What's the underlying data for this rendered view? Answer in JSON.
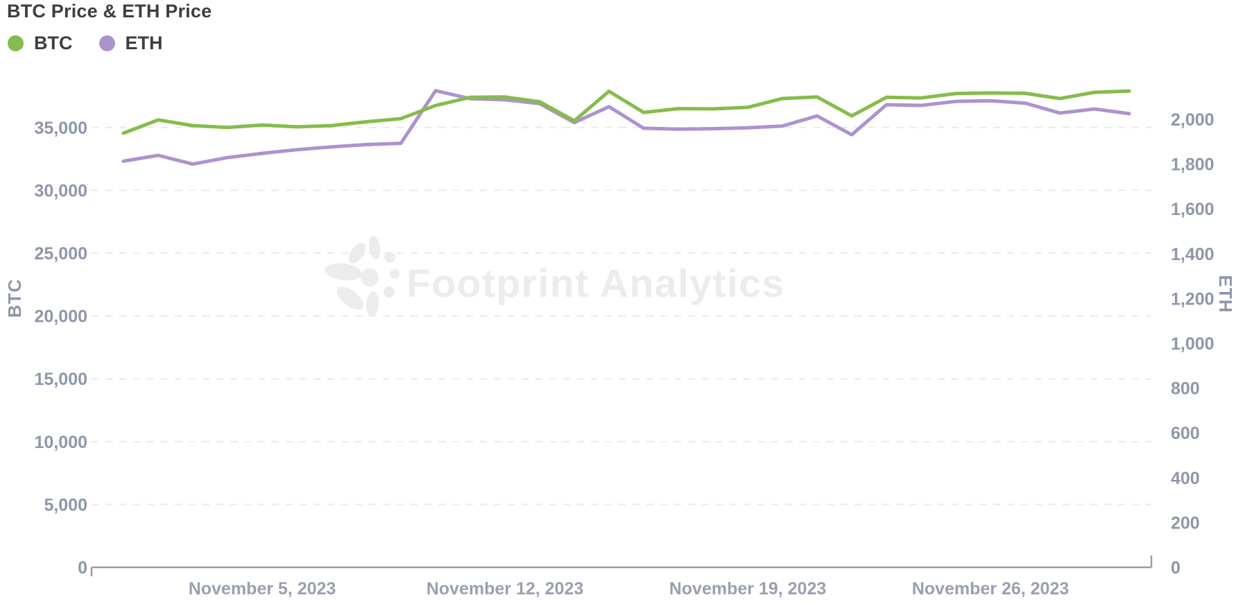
{
  "title": "BTC Price & ETH Price",
  "legend": {
    "items": [
      {
        "label": "BTC",
        "color": "#85BC4C"
      },
      {
        "label": "ETH",
        "color": "#AE92CF"
      }
    ]
  },
  "watermark": {
    "text": "Footprint Analytics"
  },
  "colors": {
    "btc_line": "#85BC4C",
    "eth_line": "#AE92CF",
    "grid": "#EAEAEE",
    "axis_line": "#9B9B9B",
    "axis_text": "#8F96AA",
    "date_text": "#9AA0B2",
    "title_text": "#3E3E3E",
    "watermark": "#ECECEE",
    "background": "#FFFFFF"
  },
  "chart_data": {
    "type": "line",
    "title": "BTC Price & ETH Price",
    "legend_position": "top-left",
    "grid": {
      "horizontal_dashed_lines": true,
      "at_left_axis_ticks": true
    },
    "dates": [
      "2023-11-01",
      "2023-11-02",
      "2023-11-03",
      "2023-11-04",
      "2023-11-05",
      "2023-11-06",
      "2023-11-07",
      "2023-11-08",
      "2023-11-09",
      "2023-11-10",
      "2023-11-11",
      "2023-11-12",
      "2023-11-13",
      "2023-11-14",
      "2023-11-15",
      "2023-11-16",
      "2023-11-17",
      "2023-11-18",
      "2023-11-19",
      "2023-11-20",
      "2023-11-21",
      "2023-11-22",
      "2023-11-23",
      "2023-11-24",
      "2023-11-25",
      "2023-11-26",
      "2023-11-27",
      "2023-11-28",
      "2023-11-29",
      "2023-11-30"
    ],
    "x_tick_labels": [
      {
        "label": "November 5, 2023",
        "day_index": 4
      },
      {
        "label": "November 12, 2023",
        "day_index": 11
      },
      {
        "label": "November 19, 2023",
        "day_index": 18
      },
      {
        "label": "November 26, 2023",
        "day_index": 25
      }
    ],
    "left_axis": {
      "name": "BTC",
      "min": 0,
      "tick_interval": 5000,
      "ticks": [
        0,
        5000,
        10000,
        15000,
        20000,
        25000,
        30000,
        35000
      ]
    },
    "right_axis": {
      "name": "ETH",
      "min": 0,
      "tick_interval": 200,
      "ticks": [
        0,
        200,
        400,
        600,
        800,
        1000,
        1200,
        1400,
        1600,
        1800,
        2000
      ]
    },
    "series": [
      {
        "name": "BTC",
        "axis": "left",
        "color": "#85BC4C",
        "values": [
          34550,
          35600,
          35150,
          35000,
          35200,
          35050,
          35150,
          35450,
          35700,
          36750,
          37400,
          37430,
          37050,
          35530,
          37880,
          36200,
          36500,
          36480,
          36600,
          37300,
          37430,
          35920,
          37400,
          37350,
          37700,
          37750,
          37720,
          37300,
          37800,
          37900
        ]
      },
      {
        "name": "ETH",
        "axis": "right",
        "color": "#AE92CF",
        "values": [
          1813,
          1839,
          1800,
          1829,
          1848,
          1864,
          1877,
          1887,
          1893,
          2128,
          2092,
          2087,
          2070,
          1985,
          2056,
          1960,
          1956,
          1958,
          1962,
          1970,
          2015,
          1931,
          2065,
          2062,
          2080,
          2083,
          2072,
          2028,
          2046,
          2025
        ]
      }
    ]
  }
}
